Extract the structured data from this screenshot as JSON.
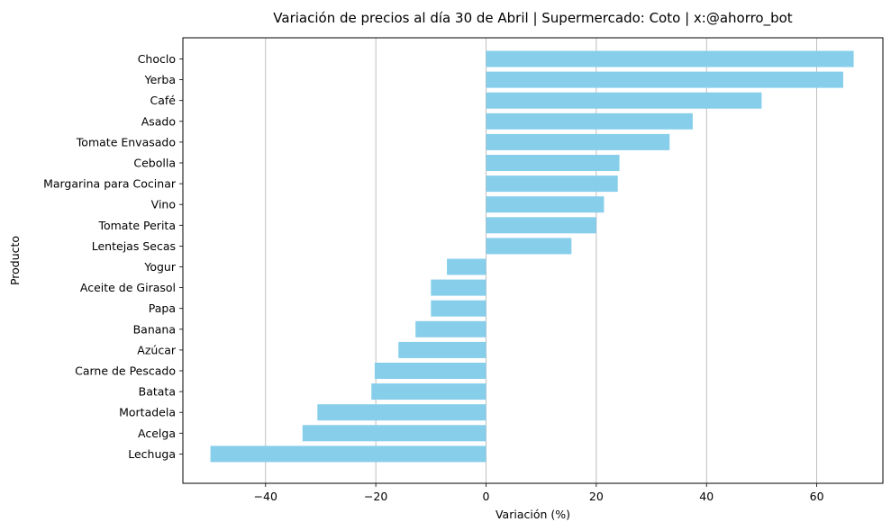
{
  "chart_data": {
    "type": "bar",
    "orientation": "horizontal",
    "title": "Variación de precios al día 30 de Abril | Supermercado: Coto | x:@ahorro_bot",
    "xlabel": "Variación (%)",
    "ylabel": "Producto",
    "xlim": [
      -55,
      72
    ],
    "xticks": [
      -40,
      -20,
      0,
      20,
      40,
      60
    ],
    "grid": "x",
    "bar_color": "#87ceeb",
    "categories": [
      "Choclo",
      "Yerba",
      "Café",
      "Asado",
      "Tomate Envasado",
      "Cebolla",
      "Margarina para Cocinar",
      "Vino",
      "Tomate Perita",
      "Lentejas Secas",
      "Yogur",
      "Aceite de Girasol",
      "Papa",
      "Banana",
      "Azúcar",
      "Carne de Pescado",
      "Batata",
      "Mortadela",
      "Acelga",
      "Lechuga"
    ],
    "values": [
      66.7,
      64.8,
      50.0,
      37.5,
      33.3,
      24.2,
      23.9,
      21.4,
      20.0,
      15.5,
      -7.1,
      -10.0,
      -10.0,
      -12.8,
      -15.9,
      -20.2,
      -20.8,
      -30.6,
      -33.3,
      -50.0
    ]
  }
}
